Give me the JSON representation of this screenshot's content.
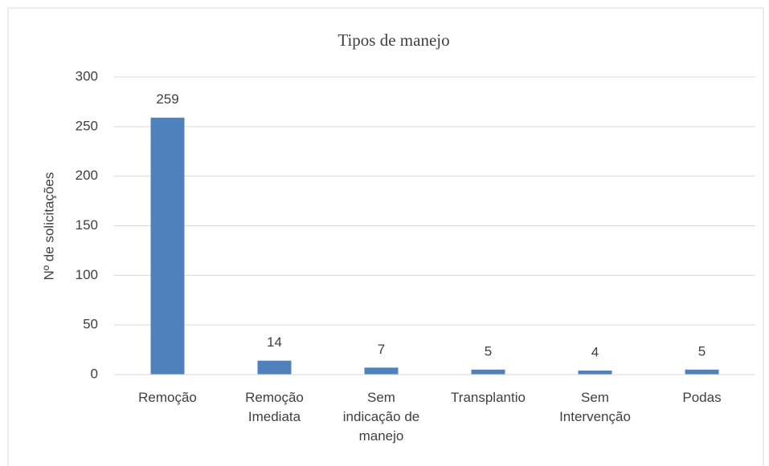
{
  "chart_data": {
    "type": "bar",
    "title": "Tipos de manejo",
    "y_label": "Nº de solicitações",
    "categories": [
      "Remoção",
      "Remoção Imediata",
      "Sem indicação de manejo",
      "Transplantio",
      "Sem Intervenção",
      "Podas"
    ],
    "values": [
      259,
      14,
      7,
      5,
      4,
      5
    ],
    "color": "#4f81bd",
    "ylim": [
      0,
      300
    ],
    "yticks": [
      0,
      50,
      100,
      150,
      200,
      250,
      300
    ],
    "grid": true
  }
}
